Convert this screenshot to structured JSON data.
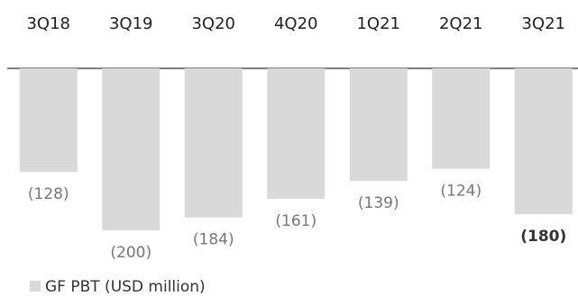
{
  "chart_data": {
    "type": "bar",
    "categories": [
      "3Q18",
      "3Q19",
      "3Q20",
      "4Q20",
      "1Q21",
      "2Q21",
      "3Q21"
    ],
    "values": [
      -128,
      -200,
      -184,
      -161,
      -139,
      -124,
      -180
    ],
    "value_labels": [
      "(128)",
      "(200)",
      "(184)",
      "(161)",
      "(139)",
      "(124)",
      "(180)"
    ],
    "highlight_index": 6,
    "category_axis_position": "top",
    "ylim": [
      -200,
      0
    ],
    "grid": false,
    "legend": {
      "placement": "bottom-left",
      "entries": [
        {
          "name": "GF PBT (USD million)",
          "color": "#d9d9d9"
        }
      ]
    },
    "colors": {
      "bar": "#d9d9d9",
      "axis": "#555555",
      "value_label": "#777777",
      "value_label_highlight": "#333333",
      "category_label": "#222222"
    }
  }
}
